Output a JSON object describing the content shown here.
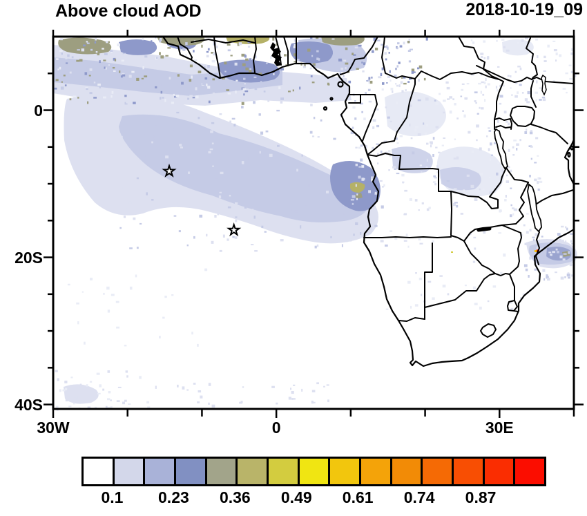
{
  "title": "Above cloud AOD",
  "date_label": "2018-10-19_09",
  "axes": {
    "y_tick_labels": [
      {
        "label": "0",
        "lat": 0
      },
      {
        "label": "20S",
        "lat": -20
      },
      {
        "label": "40S",
        "lat": -40
      }
    ],
    "x_tick_labels": [
      {
        "label": "30W",
        "lon": -30
      },
      {
        "label": "0",
        "lon": 0
      },
      {
        "label": "30E",
        "lon": 30
      }
    ]
  },
  "colorbar": {
    "tick_labels": [
      "0.1",
      "0.23",
      "0.36",
      "0.49",
      "0.61",
      "0.74",
      "0.87"
    ],
    "colors": [
      "#ffffff",
      "#d3d7ea",
      "#a9b2d8",
      "#8190c2",
      "#a2a48a",
      "#b9b469",
      "#d3cc3f",
      "#f0e512",
      "#f2c60d",
      "#f4a309",
      "#f28b06",
      "#f56a05",
      "#f84e03",
      "#fa2d01",
      "#fb0d00"
    ]
  },
  "chart_data": {
    "type": "heatmap",
    "title": "Above cloud AOD",
    "timestamp": "2018-10-19_09",
    "variable": "Above-cloud aerosol optical depth over Africa and the southeast Atlantic",
    "x_axis": {
      "kind": "longitude",
      "range_deg": [
        -30,
        40
      ],
      "tick_interval_deg": 10,
      "labeled_ticks": [
        "30W",
        "0",
        "30E"
      ]
    },
    "y_axis": {
      "kind": "latitude",
      "range_deg": [
        10,
        -40.6
      ],
      "tick_interval_deg": 5,
      "labeled_ticks": [
        "0",
        "20S",
        "40S"
      ]
    },
    "colorbar_boundary_labels": [
      0.1,
      0.23,
      0.36,
      0.49,
      0.61,
      0.74,
      0.87
    ],
    "colorbar_cell_colors": [
      "#ffffff",
      "#d3d7ea",
      "#a9b2d8",
      "#8190c2",
      "#a2a48a",
      "#b9b469",
      "#d3cc3f",
      "#f0e512",
      "#f2c60d",
      "#f4a309",
      "#f28b06",
      "#f56a05",
      "#f84e03",
      "#fa2d01",
      "#fb0d00"
    ],
    "markers": [
      {
        "type": "open-star",
        "lon": -14.4,
        "lat": -8.3
      },
      {
        "type": "open-star",
        "lon": -5.7,
        "lat": -16.3
      }
    ],
    "field_regions": [
      {
        "region": "SE Atlantic stratocumulus deck plume",
        "extent": "20W-14E, 2S-20S",
        "approx_aod": "0.1-0.23"
      },
      {
        "region": "Dense plume core off Angola coast",
        "extent": "8E-14E, 7S-17S",
        "approx_aod": "0.23-0.36"
      },
      {
        "region": "Gulf of Guinea / West Africa coastal band",
        "extent": "30W-12E, 3N-9N",
        "approx_aod": "0.17-0.36"
      },
      {
        "region": "Olive/khaki band along Sahel fringe",
        "extent": "30W-13E, 8N-10N",
        "approx_aod": "0.36-0.55"
      },
      {
        "region": "Scattered light haze over central/east Africa",
        "extent": "10E-40E, 8N-15S",
        "approx_aod": "0.1-0.2"
      },
      {
        "region": "Mozambique Channel patch with isolated hotspot",
        "extent": "33E-40E, 15S-21S",
        "approx_aod": "0.2-0.36, spot >0.9"
      }
    ]
  }
}
